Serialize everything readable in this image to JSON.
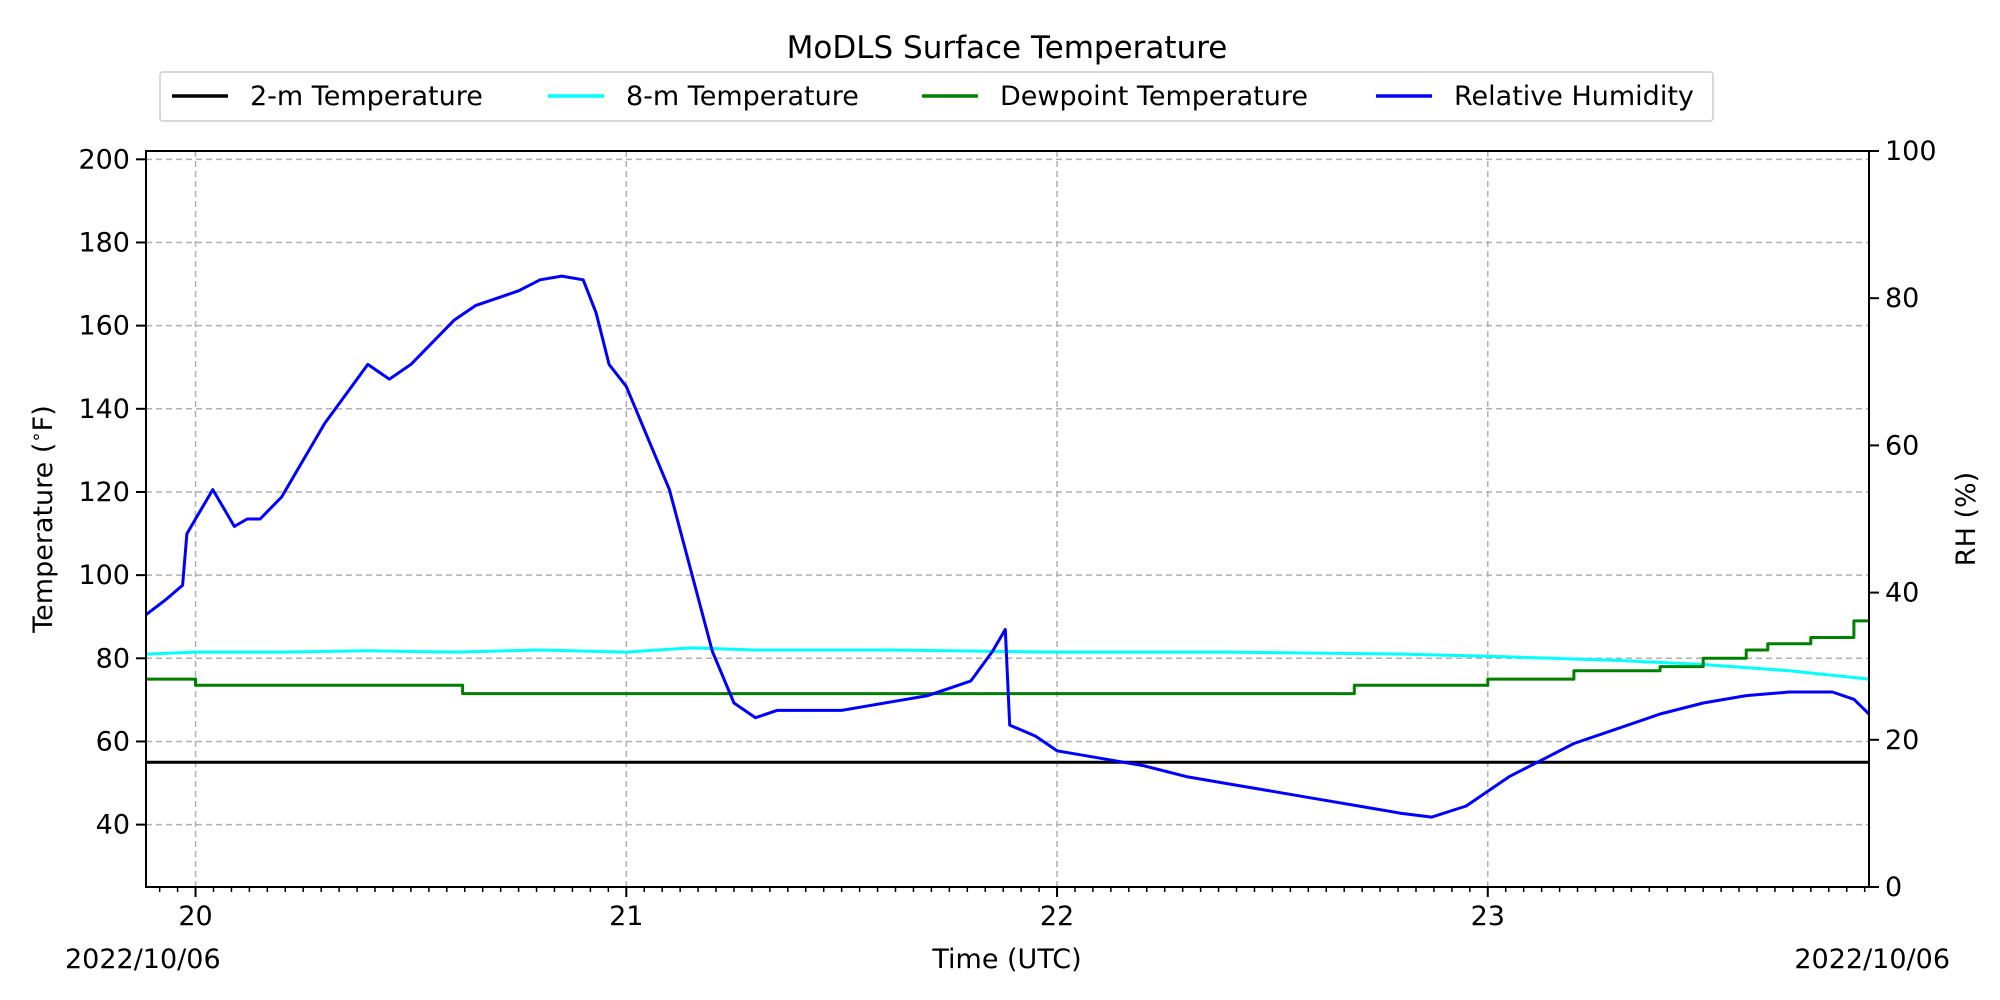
{
  "chart_data": {
    "type": "line",
    "title": "MoDLS Surface Temperature",
    "xlabel": "Time (UTC)",
    "ylabel_left": "Temperature ($^\\circ$F)",
    "ylabel_right": "RH (%)",
    "date_left": "2022/10/06",
    "date_right": "2022/10/06",
    "x_unit": "hour (UTC)",
    "xlim": [
      19.885,
      23.885
    ],
    "x_ticks": [
      20,
      21,
      22,
      23
    ],
    "x_tick_labels": [
      "20",
      "21",
      "22",
      "23"
    ],
    "ylim_left": [
      25,
      202
    ],
    "y_ticks_left": [
      40,
      60,
      80,
      100,
      120,
      140,
      160,
      180,
      200
    ],
    "ylim_right": [
      0,
      100
    ],
    "y_ticks_right": [
      0,
      20,
      40,
      60,
      80,
      100
    ],
    "grid": true,
    "legend_position": "top",
    "series": [
      {
        "name": "2-m Temperature",
        "color": "#000000",
        "axis": "left",
        "x": [
          19.885,
          23.885
        ],
        "values": [
          55,
          55
        ]
      },
      {
        "name": "8-m Temperature",
        "color": "#00ffff",
        "axis": "left",
        "x": [
          19.885,
          20.0,
          20.2,
          20.4,
          20.6,
          20.8,
          21.0,
          21.15,
          21.3,
          21.6,
          22.0,
          22.4,
          22.8,
          23.0,
          23.3,
          23.5,
          23.7,
          23.885
        ],
        "values": [
          81,
          81.5,
          81.5,
          81.8,
          81.5,
          82,
          81.5,
          82.5,
          82,
          82,
          81.5,
          81.5,
          81,
          80.5,
          79.5,
          78.5,
          77,
          75
        ]
      },
      {
        "name": "Dewpoint Temperature",
        "color": "#008000",
        "axis": "left",
        "step": true,
        "x": [
          19.885,
          20.0,
          20.62,
          21.0,
          21.17,
          21.3,
          21.6,
          21.9,
          22.3,
          22.69,
          23.0,
          23.2,
          23.4,
          23.5,
          23.6,
          23.65,
          23.75,
          23.85,
          23.885
        ],
        "values": [
          75,
          73.5,
          71.5,
          71.5,
          71.5,
          71.5,
          71.5,
          71.5,
          71.5,
          73.5,
          75,
          77,
          78,
          80,
          82,
          83.5,
          85,
          89,
          89
        ]
      },
      {
        "name": "Relative Humidity",
        "color": "#0000ff",
        "axis": "right",
        "x": [
          19.885,
          19.93,
          19.97,
          19.98,
          20.0,
          20.04,
          20.07,
          20.09,
          20.12,
          20.15,
          20.2,
          20.25,
          20.3,
          20.35,
          20.4,
          20.45,
          20.5,
          20.55,
          20.6,
          20.65,
          20.7,
          20.75,
          20.8,
          20.85,
          20.9,
          20.93,
          20.96,
          21.0,
          21.05,
          21.1,
          21.15,
          21.2,
          21.25,
          21.3,
          21.35,
          21.4,
          21.45,
          21.5,
          21.55,
          21.6,
          21.65,
          21.7,
          21.75,
          21.8,
          21.85,
          21.88,
          21.89,
          21.95,
          22.0,
          22.1,
          22.2,
          22.3,
          22.4,
          22.5,
          22.6,
          22.7,
          22.8,
          22.87,
          22.95,
          23.0,
          23.05,
          23.1,
          23.2,
          23.3,
          23.4,
          23.5,
          23.6,
          23.7,
          23.8,
          23.85,
          23.885
        ],
        "values": [
          37,
          39,
          41,
          48,
          50,
          54,
          51,
          49,
          50,
          50,
          53,
          58,
          63,
          67,
          71,
          69,
          71,
          74,
          77,
          79,
          80,
          81,
          82.5,
          83,
          82.5,
          78,
          71,
          68,
          61,
          54,
          43,
          32,
          25,
          23,
          24,
          24,
          24,
          24,
          24.5,
          25,
          25.5,
          26,
          27,
          28,
          32,
          35,
          22,
          20.5,
          18.5,
          17.5,
          16.5,
          15,
          14,
          13,
          12,
          11,
          10,
          9.5,
          11,
          13,
          15,
          16.5,
          19.5,
          21.5,
          23.5,
          25,
          26,
          26.5,
          26.5,
          25.5,
          23.5
        ]
      }
    ]
  }
}
